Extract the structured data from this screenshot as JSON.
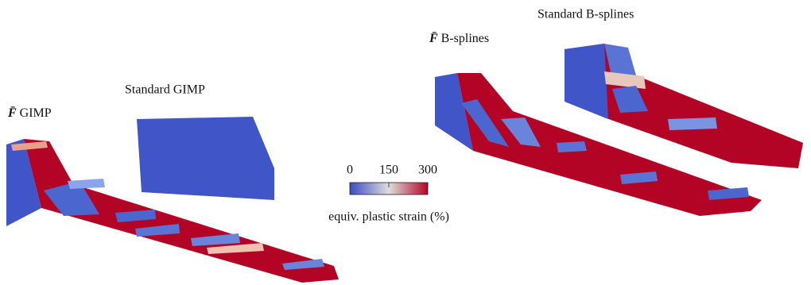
{
  "panels": [
    {
      "symbol": "F̄",
      "name": "GIMP"
    },
    {
      "name": "Standard GIMP"
    },
    {
      "symbol": "F̄",
      "name": "B-splines"
    },
    {
      "name": "Standard B-splines"
    }
  ],
  "colorbar": {
    "ticks": [
      0,
      150,
      300
    ],
    "label": "equiv. plastic strain (%)"
  }
}
